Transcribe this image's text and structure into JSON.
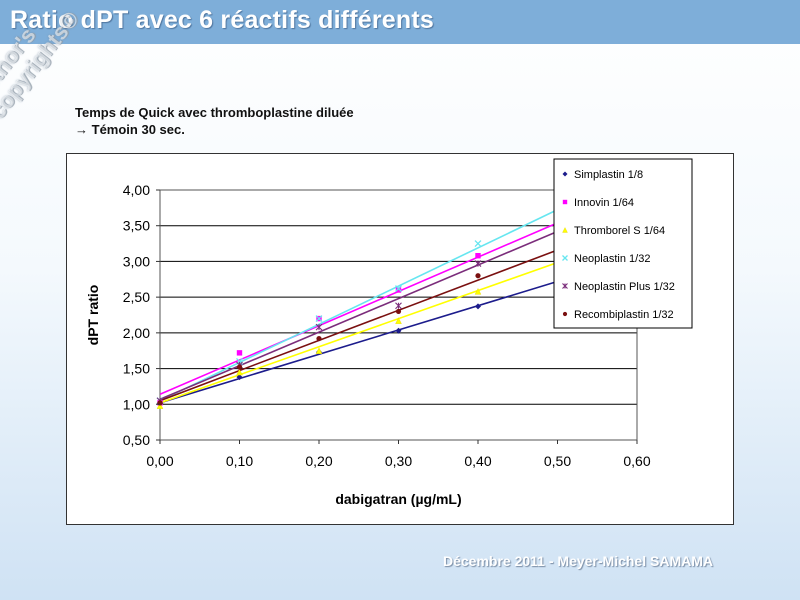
{
  "header": {
    "title": "Ratio dPT avec 6 réactifs différents",
    "watermark_line1": "Author's",
    "watermark_line2": "copyrights©"
  },
  "subtitle": {
    "line1": "Temps de Quick avec thromboplastine diluée",
    "line2_arrow": "→",
    "line2": "Témoin 30 sec."
  },
  "footer": {
    "text": "Décembre 2011 - Meyer-Michel SAMAMA"
  },
  "chart_data": {
    "type": "scatter",
    "xlabel": "dabigatran (µg/mL)",
    "ylabel": "dPT ratio",
    "xlim": [
      0,
      0.6
    ],
    "ylim": [
      0.5,
      4.0
    ],
    "x_ticks": [
      0,
      0.1,
      0.2,
      0.3,
      0.4,
      0.5,
      0.6
    ],
    "x_tick_labels": [
      "0,00",
      "0,10",
      "0,20",
      "0,30",
      "0,40",
      "0,50",
      "0,60"
    ],
    "y_ticks": [
      0.5,
      1.0,
      1.5,
      2.0,
      2.5,
      3.0,
      3.5,
      4.0
    ],
    "y_tick_labels": [
      "0,50",
      "1,00",
      "1,50",
      "2,00",
      "2,50",
      "3,00",
      "3,50",
      "4,00"
    ],
    "grid": "horizontal",
    "legend_position": "top-right",
    "trendlines": "linear",
    "series": [
      {
        "name": "Simplastin 1/8",
        "color": "#1c1c8c",
        "marker": "diamond",
        "x": [
          0,
          0.1,
          0.2,
          0.3,
          0.4
        ],
        "y": [
          1.0,
          1.38,
          1.73,
          2.03,
          2.37
        ],
        "fit": {
          "intercept": 1.02,
          "slope": 3.4
        }
      },
      {
        "name": "Innovin 1/64",
        "color": "#ff00ff",
        "marker": "square",
        "x": [
          0,
          0.1,
          0.2,
          0.3,
          0.4
        ],
        "y": [
          1.02,
          1.72,
          2.2,
          2.6,
          3.08
        ],
        "fit": {
          "intercept": 1.14,
          "slope": 4.8
        }
      },
      {
        "name": "Thromborel S 1/64",
        "color": "#ffff00",
        "marker": "triangle",
        "x": [
          0,
          0.1,
          0.2,
          0.3,
          0.4
        ],
        "y": [
          0.98,
          1.45,
          1.75,
          2.17,
          2.58
        ],
        "fit": {
          "intercept": 1.02,
          "slope": 3.93
        }
      },
      {
        "name": "Neoplastin 1/32",
        "color": "#66e6f0",
        "marker": "x",
        "x": [
          0,
          0.1,
          0.2,
          0.3,
          0.4
        ],
        "y": [
          1.05,
          1.6,
          2.2,
          2.62,
          3.25
        ],
        "fit": {
          "intercept": 1.05,
          "slope": 5.35
        }
      },
      {
        "name": "Neoplastin Plus 1/32",
        "color": "#7b2d7b",
        "marker": "star",
        "x": [
          0,
          0.1,
          0.2,
          0.3,
          0.4
        ],
        "y": [
          1.05,
          1.55,
          2.08,
          2.38,
          2.97
        ],
        "fit": {
          "intercept": 1.07,
          "slope": 4.7
        }
      },
      {
        "name": "Recombiplastin 1/32",
        "color": "#7a1010",
        "marker": "circle",
        "x": [
          0,
          0.1,
          0.2,
          0.3,
          0.4
        ],
        "y": [
          1.02,
          1.52,
          1.92,
          2.3,
          2.8
        ],
        "fit": {
          "intercept": 1.05,
          "slope": 4.22
        }
      }
    ]
  }
}
